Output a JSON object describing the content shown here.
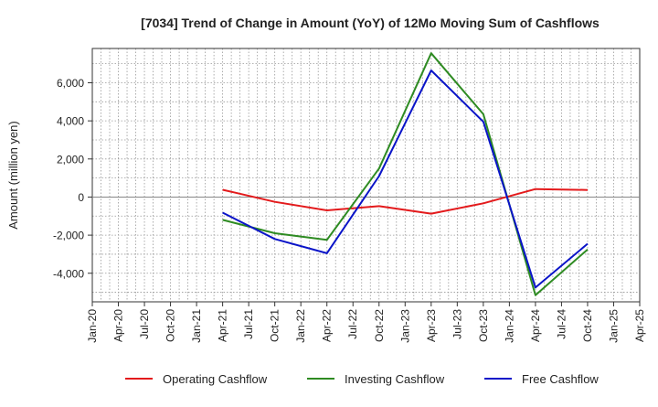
{
  "chart_data": {
    "type": "line",
    "title": "[7034]  Trend of Change in Amount (YoY) of 12Mo Moving Sum of Cashflows",
    "xlabel": "",
    "ylabel": "Amount (million yen)",
    "categories": [
      "Jan-20",
      "Apr-20",
      "Jul-20",
      "Oct-20",
      "Jan-21",
      "Apr-21",
      "Jul-21",
      "Oct-21",
      "Jan-22",
      "Apr-22",
      "Jul-22",
      "Oct-22",
      "Jan-23",
      "Apr-23",
      "Jul-23",
      "Oct-23",
      "Jan-24",
      "Apr-24",
      "Jul-24",
      "Oct-24",
      "Jan-25",
      "Apr-25"
    ],
    "ylim": [
      -5500,
      7800
    ],
    "yticks": [
      -4000,
      -2000,
      0,
      2000,
      4000,
      6000
    ],
    "ytick_labels": [
      "-4,000",
      "-2,000",
      "0",
      "2,000",
      "4,000",
      "6,000"
    ],
    "grid": true,
    "legend_position": "bottom",
    "series": [
      {
        "name": "Operating Cashflow",
        "color": "#e31a1c",
        "values": [
          null,
          null,
          null,
          null,
          null,
          380,
          null,
          -250,
          null,
          -700,
          null,
          -480,
          null,
          -870,
          null,
          -330,
          null,
          420,
          null,
          370,
          null,
          null
        ]
      },
      {
        "name": "Investing Cashflow",
        "color": "#2e8b22",
        "values": [
          null,
          null,
          null,
          null,
          null,
          -1200,
          null,
          -1900,
          null,
          -2250,
          null,
          1500,
          null,
          7550,
          null,
          4350,
          null,
          -5150,
          null,
          -2750,
          null,
          null
        ]
      },
      {
        "name": "Free Cashflow",
        "color": "#0a14c8",
        "values": [
          null,
          null,
          null,
          null,
          null,
          -820,
          null,
          -2200,
          null,
          -2950,
          null,
          1100,
          null,
          6650,
          null,
          3950,
          null,
          -4750,
          null,
          -2450,
          null,
          null
        ]
      }
    ]
  }
}
